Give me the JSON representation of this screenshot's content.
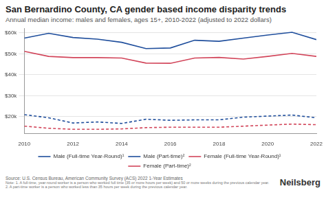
{
  "chart_data": {
    "type": "line",
    "title": "San Bernardino County, CA gender based income disparity trends",
    "subtitle": "Annual median income: males and females, ages 15+, 2010-2022 (adjusted to 2022 dollars)",
    "source": "Source: U.S. Census Bureau, American Community Survey (ACS) 2022 1-Year Estimates",
    "notes": [
      "Note: 1. A full-time, year-round worker is a person who worked full time (35 or more hours per week) and 50 or more weeks during the previous calendar year.",
      "2. A part-time worker is a person who worked less than 35 hours per week during the previous calendar year."
    ],
    "logo": "Neilsberg",
    "x": [
      2010,
      2011,
      2012,
      2013,
      2014,
      2015,
      2016,
      2017,
      2018,
      2019,
      2020,
      2021,
      2022
    ],
    "xlim": [
      2010,
      2022
    ],
    "xticks": [
      2010,
      2012,
      2014,
      2016,
      2018,
      2020,
      2022
    ],
    "ylim": [
      12000,
      62000
    ],
    "yticks": [
      {
        "value": 20000,
        "label": "$20k"
      },
      {
        "value": 30000,
        "label": "$30k"
      },
      {
        "value": 40000,
        "label": "$40k"
      },
      {
        "value": 50000,
        "label": "$50k"
      },
      {
        "value": 60000,
        "label": "$60k"
      }
    ],
    "grid": true,
    "legend": "bottom",
    "series": [
      {
        "name": "Male (Full-time Year-Round)¹",
        "color": "#1f4e9c",
        "line_style": "solid",
        "values": [
          57500,
          59800,
          57800,
          57000,
          55500,
          52500,
          52800,
          56500,
          56000,
          57500,
          59000,
          60300,
          56800
        ]
      },
      {
        "name": "Male (Part-time)²",
        "color": "#1f4e9c",
        "line_style": "dashed",
        "values": [
          21000,
          19500,
          17000,
          17500,
          16800,
          18800,
          18300,
          18500,
          18500,
          19800,
          20300,
          20800,
          19500
        ]
      },
      {
        "name": "Female (Full-time Year-Round)¹",
        "color": "#d2455a",
        "line_style": "solid",
        "values": [
          51200,
          48800,
          48200,
          48200,
          48000,
          45600,
          45500,
          48000,
          48300,
          47500,
          48800,
          50200,
          48800
        ]
      },
      {
        "name": "Female (Part-time)²",
        "color": "#d2455a",
        "line_style": "dashed",
        "values": [
          15500,
          14500,
          14000,
          14000,
          14200,
          14800,
          15000,
          15000,
          15000,
          15500,
          16000,
          16500,
          16200
        ]
      }
    ]
  }
}
